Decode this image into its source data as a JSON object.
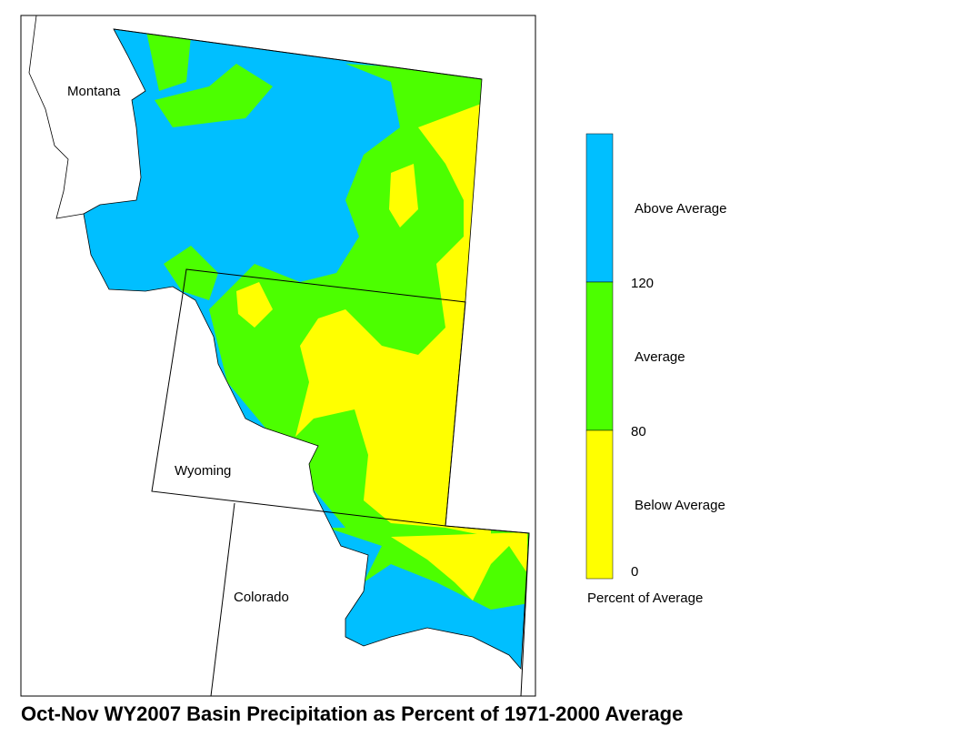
{
  "title": "Oct-Nov WY2007 Basin Precipitation as Percent of 1971-2000 Average",
  "map": {
    "labels": [
      "Montana",
      "Wyoming",
      "Colorado"
    ]
  },
  "legend": {
    "title": "Percent of Average",
    "classes": [
      {
        "label": "Above Average",
        "color": "#00bfff"
      },
      {
        "label": "Average",
        "color": "#4cff00"
      },
      {
        "label": "Below Average",
        "color": "#ffff00"
      }
    ],
    "breaks": [
      120,
      80,
      0
    ]
  }
}
